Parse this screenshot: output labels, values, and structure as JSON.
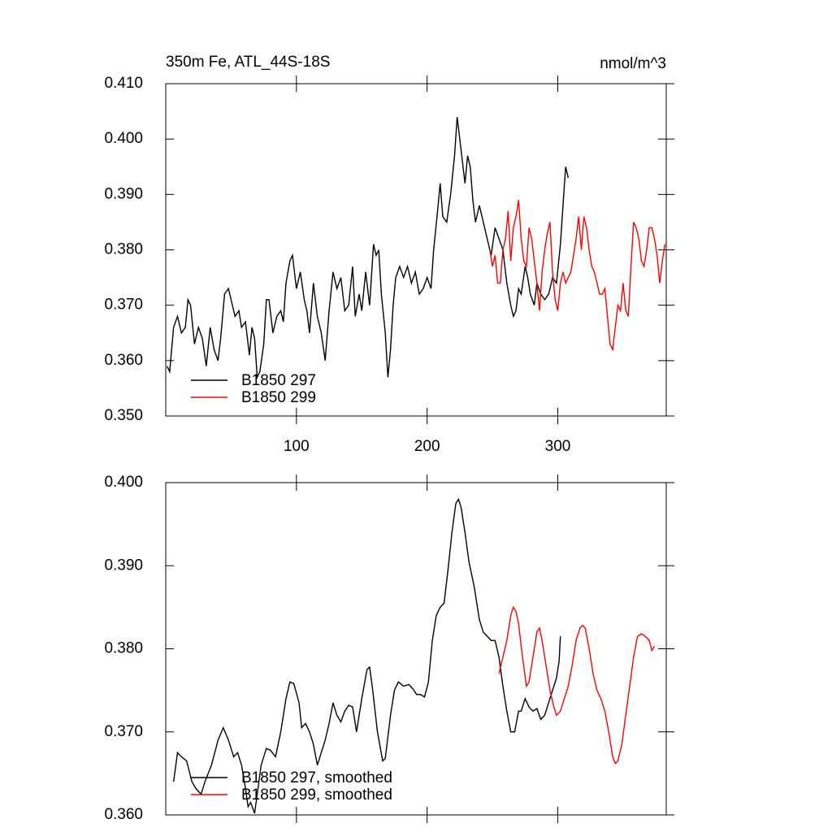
{
  "chart_data": [
    {
      "type": "line",
      "title": "350m Fe, ATL_44S-18S",
      "units_label": "nmol/m^3",
      "xlim": [
        0,
        383
      ],
      "xticks": [
        100,
        200,
        300
      ],
      "show_xtick_labels": true,
      "ylim": [
        0.35,
        0.41
      ],
      "yticks": [
        {
          "value": 0.35,
          "label": "0.350"
        },
        {
          "value": 0.36,
          "label": "0.360"
        },
        {
          "value": 0.37,
          "label": "0.370"
        },
        {
          "value": 0.38,
          "label": "0.380"
        },
        {
          "value": 0.39,
          "label": "0.390"
        },
        {
          "value": 0.4,
          "label": "0.400"
        },
        {
          "value": 0.41,
          "label": "0.410"
        }
      ],
      "legend": "lower left",
      "series": [
        {
          "name": "B1850 297",
          "color": "#000000",
          "x": [
            1,
            3,
            6,
            9,
            12,
            15,
            17,
            19,
            22,
            25,
            28,
            31,
            34,
            37,
            40,
            42,
            45,
            48,
            50,
            53,
            56,
            58,
            61,
            64,
            66,
            68,
            70,
            72,
            75,
            77,
            79,
            82,
            85,
            88,
            90,
            92,
            95,
            97,
            100,
            103,
            106,
            108,
            110,
            113,
            116,
            119,
            122,
            125,
            128,
            131,
            134,
            137,
            140,
            143,
            145,
            148,
            150,
            153,
            156,
            159,
            161,
            163,
            165,
            168,
            170,
            172,
            174,
            176,
            179,
            182,
            185,
            188,
            191,
            194,
            197,
            200,
            203,
            205,
            208,
            210,
            212,
            215,
            218,
            221,
            223,
            225,
            227,
            229,
            231,
            233,
            235,
            237,
            240,
            243,
            246,
            249,
            252,
            255,
            258,
            261,
            264,
            266,
            268,
            270,
            272,
            275,
            277,
            279,
            282,
            284,
            287,
            290,
            293,
            296,
            299,
            302,
            304,
            306,
            308
          ],
          "values": [
            0.359,
            0.358,
            0.366,
            0.368,
            0.365,
            0.366,
            0.371,
            0.37,
            0.363,
            0.366,
            0.364,
            0.359,
            0.366,
            0.362,
            0.36,
            0.364,
            0.372,
            0.373,
            0.371,
            0.368,
            0.369,
            0.366,
            0.367,
            0.361,
            0.366,
            0.364,
            0.357,
            0.358,
            0.363,
            0.371,
            0.371,
            0.365,
            0.368,
            0.369,
            0.367,
            0.374,
            0.378,
            0.379,
            0.373,
            0.376,
            0.371,
            0.369,
            0.365,
            0.374,
            0.368,
            0.365,
            0.36,
            0.369,
            0.376,
            0.373,
            0.375,
            0.369,
            0.37,
            0.377,
            0.368,
            0.372,
            0.369,
            0.376,
            0.37,
            0.381,
            0.379,
            0.38,
            0.372,
            0.365,
            0.357,
            0.362,
            0.37,
            0.375,
            0.377,
            0.375,
            0.377,
            0.374,
            0.376,
            0.372,
            0.373,
            0.375,
            0.373,
            0.38,
            0.387,
            0.392,
            0.386,
            0.385,
            0.39,
            0.397,
            0.404,
            0.4,
            0.396,
            0.392,
            0.397,
            0.395,
            0.389,
            0.385,
            0.388,
            0.385,
            0.382,
            0.379,
            0.384,
            0.382,
            0.38,
            0.374,
            0.37,
            0.368,
            0.369,
            0.373,
            0.372,
            0.377,
            0.375,
            0.372,
            0.37,
            0.374,
            0.372,
            0.371,
            0.372,
            0.375,
            0.374,
            0.381,
            0.388,
            0.395,
            0.393
          ]
        },
        {
          "name": "B1850 299",
          "color": "#ff0000",
          "x": [
            248,
            250,
            252,
            254,
            256,
            258,
            260,
            262,
            264,
            266,
            268,
            270,
            272,
            274,
            276,
            278,
            280,
            282,
            284,
            286,
            288,
            290,
            292,
            294,
            296,
            298,
            300,
            302,
            304,
            306,
            308,
            310,
            312,
            314,
            316,
            318,
            320,
            322,
            324,
            326,
            328,
            330,
            332,
            334,
            336,
            338,
            340,
            342,
            344,
            346,
            348,
            350,
            352,
            354,
            356,
            358,
            360,
            362,
            364,
            366,
            368,
            370,
            372,
            374,
            376,
            378,
            380,
            382
          ],
          "values": [
            0.38,
            0.377,
            0.379,
            0.374,
            0.374,
            0.38,
            0.382,
            0.387,
            0.378,
            0.384,
            0.386,
            0.389,
            0.382,
            0.378,
            0.377,
            0.384,
            0.382,
            0.378,
            0.374,
            0.369,
            0.376,
            0.38,
            0.383,
            0.385,
            0.376,
            0.371,
            0.369,
            0.374,
            0.376,
            0.374,
            0.375,
            0.376,
            0.379,
            0.382,
            0.386,
            0.38,
            0.386,
            0.384,
            0.38,
            0.377,
            0.376,
            0.374,
            0.372,
            0.372,
            0.373,
            0.368,
            0.363,
            0.362,
            0.366,
            0.37,
            0.369,
            0.374,
            0.369,
            0.368,
            0.377,
            0.385,
            0.384,
            0.382,
            0.378,
            0.377,
            0.38,
            0.384,
            0.384,
            0.382,
            0.379,
            0.374,
            0.378,
            0.381
          ]
        }
      ]
    },
    {
      "type": "line",
      "xlim": [
        0,
        383
      ],
      "xticks": [
        100,
        200,
        300
      ],
      "show_xtick_labels": false,
      "ylim": [
        0.36,
        0.4
      ],
      "yticks": [
        {
          "value": 0.36,
          "label": "0.360"
        },
        {
          "value": 0.37,
          "label": "0.370"
        },
        {
          "value": 0.38,
          "label": "0.380"
        },
        {
          "value": 0.39,
          "label": "0.390"
        },
        {
          "value": 0.4,
          "label": "0.400"
        }
      ],
      "legend": "lower left",
      "series": [
        {
          "name": "B1850 297, smoothed",
          "color": "#000000",
          "x": [
            6,
            9,
            12,
            16,
            20,
            23,
            27,
            30,
            35,
            40,
            44,
            48,
            52,
            55,
            58,
            61,
            63,
            65,
            68,
            70,
            73,
            77,
            80,
            84,
            88,
            92,
            95,
            98,
            102,
            104,
            107,
            110,
            113,
            116,
            119,
            122,
            125,
            128,
            131,
            134,
            137,
            140,
            143,
            146,
            150,
            154,
            156,
            158,
            162,
            166,
            168,
            172,
            175,
            178,
            182,
            186,
            189,
            192,
            195,
            198,
            201,
            204,
            207,
            210,
            213,
            216,
            219,
            222,
            224,
            226,
            229,
            232,
            236,
            240,
            243,
            246,
            249,
            252,
            255,
            258,
            261,
            264,
            267,
            270,
            272,
            275,
            278,
            281,
            284,
            287,
            290,
            293,
            296,
            299,
            301,
            302
          ],
          "values": [
            0.364,
            0.3675,
            0.367,
            0.3665,
            0.364,
            0.3632,
            0.3625,
            0.364,
            0.366,
            0.369,
            0.3705,
            0.369,
            0.367,
            0.3675,
            0.366,
            0.3632,
            0.361,
            0.3615,
            0.3602,
            0.3625,
            0.366,
            0.368,
            0.3678,
            0.367,
            0.37,
            0.374,
            0.376,
            0.3758,
            0.3735,
            0.3705,
            0.371,
            0.37,
            0.3685,
            0.366,
            0.3675,
            0.369,
            0.371,
            0.3735,
            0.372,
            0.3712,
            0.3725,
            0.3732,
            0.373,
            0.37,
            0.374,
            0.3775,
            0.3778,
            0.3755,
            0.37,
            0.3665,
            0.3668,
            0.372,
            0.375,
            0.376,
            0.3755,
            0.3757,
            0.3752,
            0.3745,
            0.3745,
            0.3742,
            0.376,
            0.381,
            0.384,
            0.385,
            0.3855,
            0.3895,
            0.394,
            0.3975,
            0.398,
            0.397,
            0.394,
            0.3905,
            0.3875,
            0.3835,
            0.382,
            0.3815,
            0.381,
            0.381,
            0.379,
            0.3755,
            0.3725,
            0.37,
            0.37,
            0.3725,
            0.3725,
            0.374,
            0.373,
            0.3725,
            0.3728,
            0.3715,
            0.372,
            0.3735,
            0.375,
            0.3765,
            0.3785,
            0.3815
          ]
        },
        {
          "name": "B1850 299, smoothed",
          "color": "#ff0000",
          "x": [
            255,
            258,
            261,
            264,
            266,
            268,
            270,
            273,
            276,
            278,
            281,
            284,
            286,
            288,
            291,
            294,
            297,
            299,
            302,
            305,
            308,
            311,
            314,
            317,
            319,
            321,
            324,
            327,
            330,
            333,
            336,
            339,
            342,
            344,
            346,
            349,
            352,
            355,
            358,
            361,
            364,
            367,
            370,
            372,
            374
          ],
          "values": [
            0.377,
            0.379,
            0.381,
            0.384,
            0.385,
            0.3845,
            0.383,
            0.379,
            0.3755,
            0.376,
            0.379,
            0.382,
            0.3825,
            0.381,
            0.378,
            0.375,
            0.373,
            0.372,
            0.3725,
            0.374,
            0.3755,
            0.378,
            0.381,
            0.3825,
            0.3828,
            0.3825,
            0.38,
            0.377,
            0.375,
            0.374,
            0.3725,
            0.37,
            0.367,
            0.3662,
            0.3665,
            0.3685,
            0.372,
            0.3755,
            0.379,
            0.3815,
            0.3818,
            0.3815,
            0.381,
            0.3798,
            0.3803
          ]
        }
      ]
    }
  ]
}
